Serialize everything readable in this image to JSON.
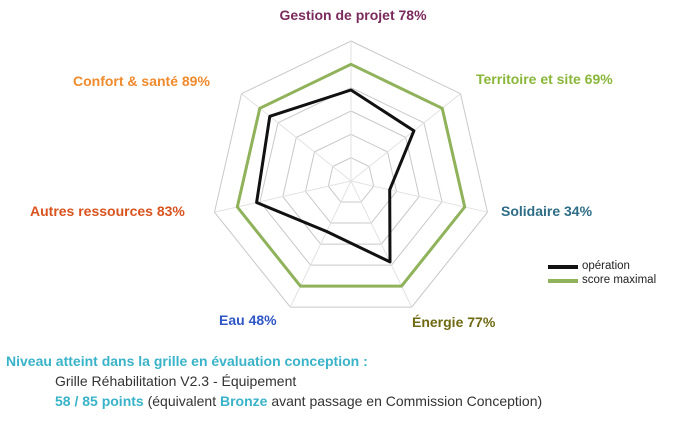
{
  "chart_data": {
    "type": "radar",
    "axes": [
      {
        "label": "Gestion de projet 78%",
        "value": 78,
        "color": "#7a2a5c"
      },
      {
        "label": "Territoire et site 69%",
        "value": 69,
        "color": "#8ab73a"
      },
      {
        "label": "Solidaire 34%",
        "value": 34,
        "color": "#2e6d86"
      },
      {
        "label": "Énergie 77%",
        "value": 77,
        "color": "#6f6a12"
      },
      {
        "label": "Eau 48%",
        "value": 48,
        "color": "#2f56c6"
      },
      {
        "label": "Autres ressources 83%",
        "value": 83,
        "color": "#d9531e"
      },
      {
        "label": "Confort & santé 89%",
        "value": 89,
        "color": "#f08a2c"
      }
    ],
    "series": [
      {
        "name": "opération",
        "values": [
          78,
          69,
          34,
          77,
          48,
          83,
          89
        ],
        "color": "#111111"
      },
      {
        "name": "score maximal",
        "values": [
          100,
          100,
          100,
          100,
          100,
          100,
          100
        ],
        "color": "#8fb25a"
      }
    ],
    "rings": [
      20,
      40,
      60,
      80,
      100,
      120
    ],
    "rlim": [
      0,
      120
    ],
    "legend_position": "right"
  },
  "footer": {
    "heading": "Niveau atteint dans la grille en évaluation conception :",
    "grid": "Grille Réhabilitation V2.3 - Équipement",
    "points": "58 / 85 points",
    "text_before": " (équivalent ",
    "level": "Bronze",
    "text_after": " avant passage en Commission Conception)"
  }
}
